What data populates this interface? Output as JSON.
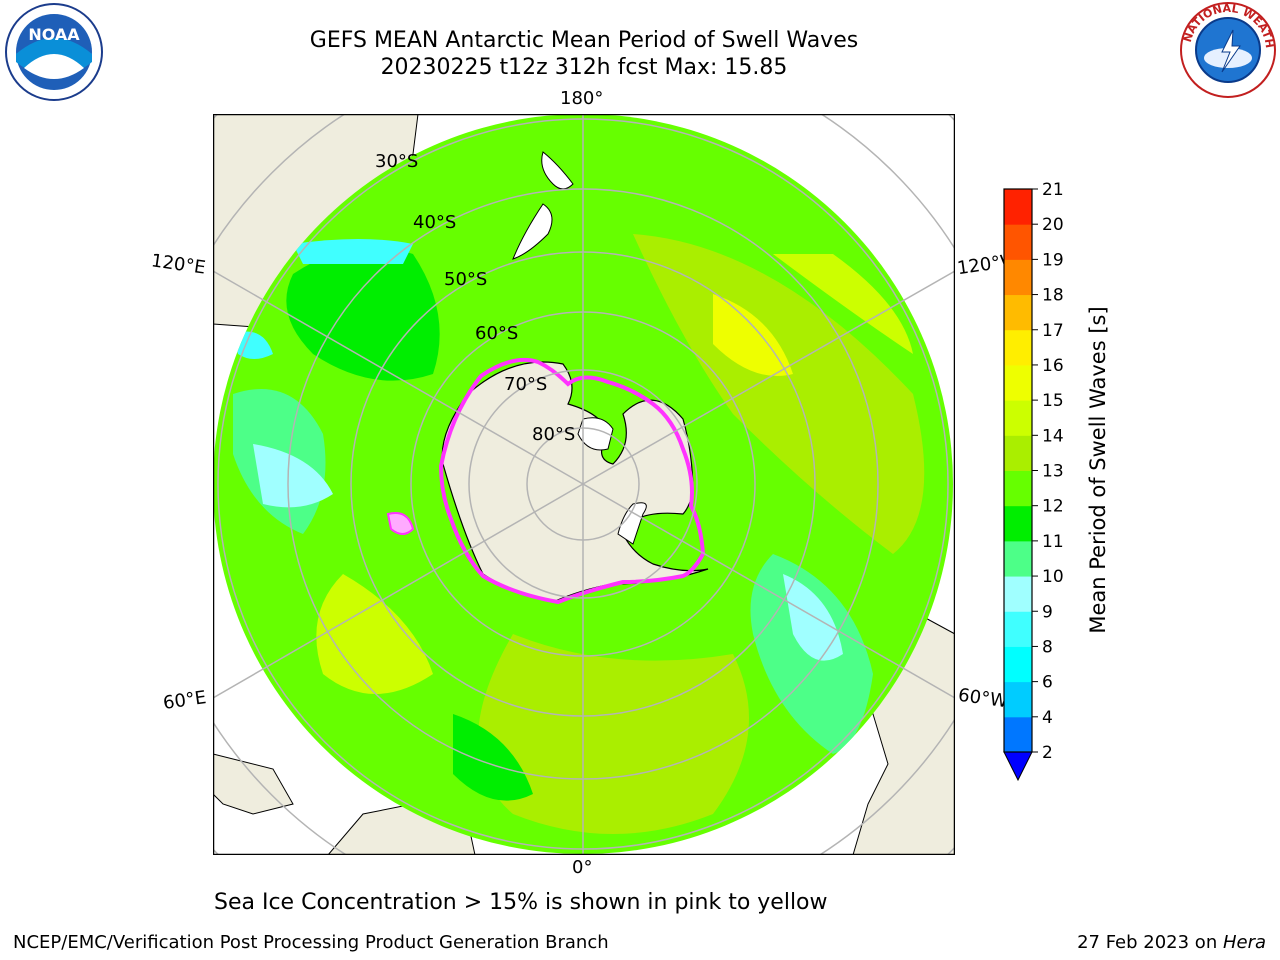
{
  "title": {
    "line1": "GEFS MEAN Antarctic Mean Period of Swell Waves",
    "line2": "20230225 t12z 312h fcst   Max: 15.85"
  },
  "map": {
    "projection": "south-polar-stereographic",
    "longitude_labels": [
      "180°",
      "120°E",
      "120°W",
      "60°E",
      "60°W",
      "0°"
    ],
    "latitude_labels": [
      "30°S",
      "40°S",
      "50°S",
      "60°S",
      "70°S",
      "80°S"
    ],
    "colors": {
      "land": "#efedde",
      "grid": "#b4b4b4",
      "dominant_field": "#66ff00",
      "ice_edge": "#ff33ff"
    }
  },
  "colorbar": {
    "label": "Mean Period of Swell Waves [s]",
    "ticks": [
      "2",
      "4",
      "6",
      "8",
      "9",
      "10",
      "11",
      "12",
      "13",
      "14",
      "15",
      "16",
      "17",
      "18",
      "19",
      "20",
      "21"
    ],
    "colors": [
      "#0077ff",
      "#00ccff",
      "#00ffff",
      "#40ffff",
      "#a0ffff",
      "#4dff88",
      "#00ee00",
      "#66ff00",
      "#aaee00",
      "#ccff00",
      "#eeff00",
      "#ffee00",
      "#ffbb00",
      "#ff8800",
      "#ff5500",
      "#ff2200"
    ],
    "under_color": "#0000ff"
  },
  "note": "Sea Ice Concentration > 15% is shown in pink to yellow",
  "footer": {
    "left": "NCEP/EMC/Verification Post Processing Product Generation Branch",
    "right_prefix": "27 Feb 2023 on ",
    "right_host": "Hera"
  },
  "logos": {
    "left": "noaa-logo",
    "right": "nws-logo"
  }
}
